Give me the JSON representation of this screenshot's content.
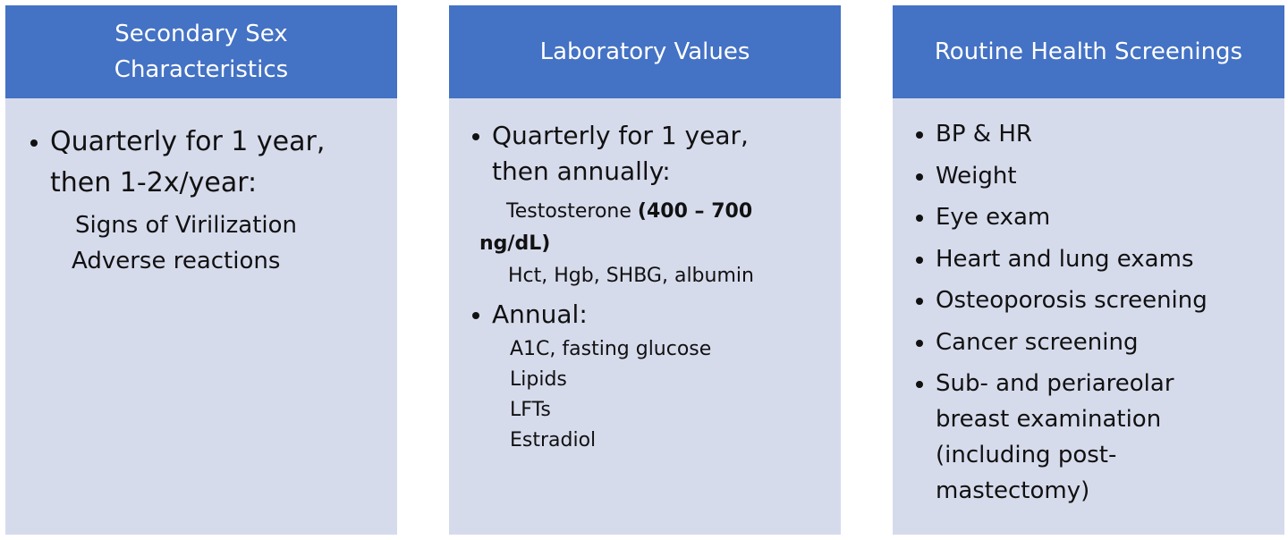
{
  "panels": [
    {
      "header": [
        "Secondary Sex",
        "Characteristics"
      ],
      "bullet": [
        "Quarterly for 1 year,",
        "then 1-2x/year:"
      ],
      "sub_items": [
        "Signs of Virilization",
        "Adverse reactions"
      ]
    },
    {
      "header": "Laboratory Values",
      "bullet1": [
        "Quarterly for 1 year,",
        "then annually:"
      ],
      "testosterone": {
        "name": "Testosterone",
        "range_part1": "(400 – 700",
        "range_part2": "ng/dL)"
      },
      "hct_line": "Hct, Hgb, SHBG, albumin",
      "bullet2": "Annual:",
      "annual_items": [
        "A1C, fasting glucose",
        "Lipids",
        "LFTs",
        "Estradiol"
      ]
    },
    {
      "header": "Routine Health Screenings",
      "items": [
        "BP & HR",
        "Weight",
        "Eye exam",
        "Heart and lung exams",
        "Osteoporosis screening",
        "Cancer screening"
      ],
      "last_item": [
        "Sub- and periareolar",
        "breast examination",
        "(including post-",
        "mastectomy)"
      ]
    }
  ]
}
